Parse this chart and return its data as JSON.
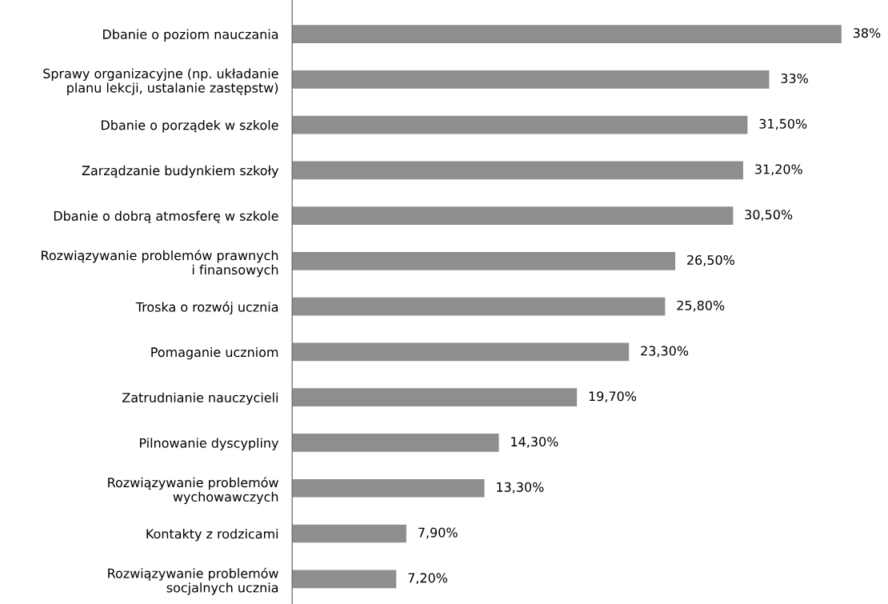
{
  "chart_data": {
    "type": "bar",
    "orientation": "horizontal",
    "categories": [
      "Dbanie o poziom nauczania",
      "Sprawy organizacyjne (np. układanie\nplanu lekcji, ustalanie zastępstw)",
      "Dbanie o porządek w szkole",
      "Zarządzanie budynkiem szkoły",
      "Dbanie o dobrą atmosferę w szkole",
      "Rozwiązywanie problemów prawnych\ni finansowych",
      "Troska o rozwój ucznia",
      "Pomaganie uczniom",
      "Zatrudnianie nauczycieli",
      "Pilnowanie dyscypliny",
      "Rozwiązywanie problemów\nwychowawczych",
      "Kontakty z rodzicami",
      "Rozwiązywanie problemów\nsocjalnych ucznia"
    ],
    "values": [
      38,
      33,
      31.5,
      31.2,
      30.5,
      26.5,
      25.8,
      23.3,
      19.7,
      14.3,
      13.3,
      7.9,
      7.2
    ],
    "value_labels": [
      "38%",
      "33%",
      "31,50%",
      "31,20%",
      "30,50%",
      "26,50%",
      "25,80%",
      "23,30%",
      "19,70%",
      "14,30%",
      "13,30%",
      "7,90%",
      "7,20%"
    ],
    "color": "#8e8e90",
    "grid": false,
    "legend": false
  }
}
